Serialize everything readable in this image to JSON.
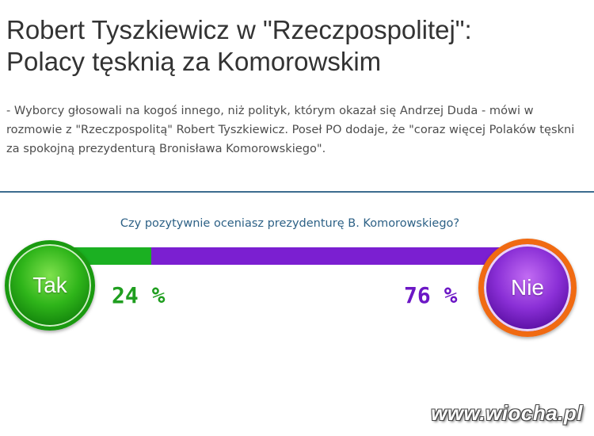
{
  "article": {
    "headline_line1": "Robert Tyszkiewicz w \"Rzeczpospolitej\":",
    "headline_line2": "Polacy tęsknią za Komorowskim",
    "lead": "- Wyborcy głosowali na kogoś innego, niż polityk, którym okazał się Andrzej Duda - mówi w rozmowie z \"Rzeczpospolitą\" Robert Tyszkiewicz. Poseł PO dodaje, że \"coraz więcej Polaków tęskni za spokojną prezydenturą Bronisława Komorowskiego\"."
  },
  "poll": {
    "question": "Czy pozytywnie oceniasz prezydenturę B. Komorowskiego?",
    "yes_label": "Tak",
    "no_label": "Nie",
    "yes_percent": 24,
    "no_percent": 76,
    "yes_percent_text": "24 %",
    "no_percent_text": "76 %",
    "yes_color": "#1bb022",
    "no_color": "#7b1fd1",
    "no_ring_color": "#f06a12"
  },
  "watermark": "www.wiocha.pl"
}
